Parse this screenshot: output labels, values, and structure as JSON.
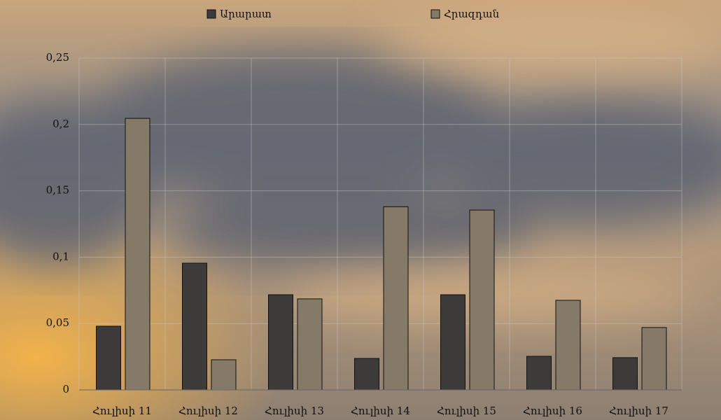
{
  "chart_data": {
    "type": "bar",
    "categories": [
      "Հուլիսի 11",
      "Հուլիսի 12",
      "Հուլիսի 13",
      "Հուլիսի 14",
      "Հուլիսի 15",
      "Հուլիսի 16",
      "Հուլիսի 17"
    ],
    "series": [
      {
        "name": "Արարատ",
        "color": "#3d3a3a",
        "values": [
          0.048,
          0.0955,
          0.0717,
          0.0237,
          0.0717,
          0.0253,
          0.0243
        ]
      },
      {
        "name": "Հրազդան",
        "color": "#857a68",
        "values": [
          0.2046,
          0.0227,
          0.0686,
          0.138,
          0.1355,
          0.0675,
          0.047
        ]
      }
    ],
    "ylim": [
      0,
      0.25
    ],
    "yticks": [
      0,
      {
        "value": 0.05,
        "label": "0,05"
      },
      {
        "value": 0.1,
        "label": "0,1"
      },
      {
        "value": 0.15,
        "label": "0,15"
      },
      {
        "value": 0.2,
        "label": "0,2"
      },
      {
        "value": 0.25,
        "label": "0,25"
      }
    ],
    "grid": true,
    "legend": "top"
  }
}
